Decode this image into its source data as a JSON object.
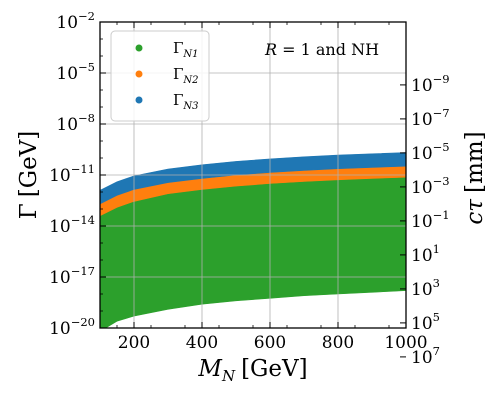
{
  "chart_data": {
    "type": "area",
    "annotation": "R = 1 and NH",
    "xlabel": {
      "main": "M",
      "sub": "N",
      "unit": "[GeV]"
    },
    "ylabel": {
      "main": "Γ",
      "unit": "[GeV]"
    },
    "y2label": {
      "main": "cτ",
      "unit": "[mm]"
    },
    "xlim": [
      100,
      1000
    ],
    "ylim_log10": [
      -20,
      -2
    ],
    "x_ticks": [
      200,
      400,
      600,
      800,
      1000
    ],
    "y_ticks": [
      {
        "base": "10",
        "exp": "−20",
        "log10": -20
      },
      {
        "base": "10",
        "exp": "−17",
        "log10": -17
      },
      {
        "base": "10",
        "exp": "−14",
        "log10": -14
      },
      {
        "base": "10",
        "exp": "−11",
        "log10": -11
      },
      {
        "base": "10",
        "exp": "−8",
        "log10": -8
      },
      {
        "base": "10",
        "exp": "−5",
        "log10": -5
      },
      {
        "base": "10",
        "exp": "−2",
        "log10": -2
      }
    ],
    "y2_ticks": [
      {
        "base": "10",
        "exp": "−9",
        "log10_mm": -9
      },
      {
        "base": "10",
        "exp": "−7",
        "log10_mm": -7
      },
      {
        "base": "10",
        "exp": "−5",
        "log10_mm": -5
      },
      {
        "base": "10",
        "exp": "−3",
        "log10_mm": -3
      },
      {
        "base": "10",
        "exp": "−1",
        "log10_mm": -1
      },
      {
        "base": "10",
        "exp": "1",
        "log10_mm": 1
      },
      {
        "base": "10",
        "exp": "3",
        "log10_mm": 3
      },
      {
        "base": "10",
        "exp": "5",
        "log10_mm": 5
      },
      {
        "base": "10",
        "exp": "7",
        "log10_mm": 7
      }
    ],
    "grid": true,
    "legend_position": "top-left",
    "x": [
      100,
      150,
      200,
      300,
      400,
      500,
      600,
      700,
      800,
      900,
      1000
    ],
    "series": [
      {
        "name": "Γ",
        "sub": "N1",
        "color": "#2ca02c",
        "lower_log10": [
          -20.2,
          -19.6,
          -19.3,
          -18.9,
          -18.6,
          -18.4,
          -18.25,
          -18.1,
          -18.0,
          -17.9,
          -17.8
        ],
        "upper_log10": [
          -13.4,
          -12.9,
          -12.55,
          -12.1,
          -11.85,
          -11.65,
          -11.5,
          -11.38,
          -11.28,
          -11.2,
          -11.13
        ]
      },
      {
        "name": "Γ",
        "sub": "N2",
        "color": "#ff7f0e",
        "lower_log10": [
          -13.4,
          -12.9,
          -12.55,
          -12.1,
          -11.85,
          -11.65,
          -11.5,
          -11.38,
          -11.28,
          -11.2,
          -11.13
        ],
        "upper_log10": [
          -12.7,
          -12.2,
          -11.85,
          -11.45,
          -11.2,
          -11.0,
          -10.85,
          -10.73,
          -10.63,
          -10.55,
          -10.48
        ]
      },
      {
        "name": "Γ",
        "sub": "N3",
        "color": "#1f77b4",
        "lower_log10": [
          -12.7,
          -12.2,
          -11.85,
          -11.45,
          -11.2,
          -11.0,
          -10.85,
          -10.73,
          -10.63,
          -10.55,
          -10.48
        ],
        "upper_log10": [
          -11.9,
          -11.4,
          -11.05,
          -10.65,
          -10.4,
          -10.2,
          -10.05,
          -9.93,
          -9.83,
          -9.75,
          -9.68
        ]
      }
    ]
  }
}
